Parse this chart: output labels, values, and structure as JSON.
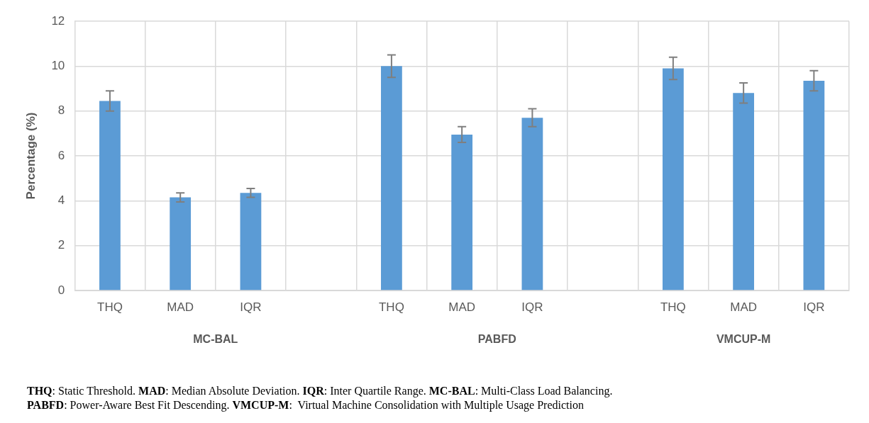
{
  "chart_data": {
    "type": "bar",
    "ylabel": "Percentage (%)",
    "categories": [
      "THQ",
      "MAD",
      "IQR",
      null,
      "THQ",
      "MAD",
      "IQR",
      null,
      "THQ",
      "MAD",
      "IQR"
    ],
    "values": [
      8.45,
      4.15,
      4.35,
      null,
      10.0,
      6.95,
      7.7,
      null,
      9.9,
      8.8,
      9.35
    ],
    "errors": [
      0.45,
      0.2,
      0.2,
      null,
      0.5,
      0.35,
      0.4,
      null,
      0.5,
      0.45,
      0.45
    ],
    "color": "#5b9bd5",
    "ylim": [
      0,
      12
    ],
    "yticks": [
      0,
      2,
      4,
      6,
      8,
      10,
      12
    ],
    "grid": true,
    "legend": false,
    "annotations": [
      "MC-BAL",
      "PABFD",
      "VMCUP-M",
      "THQ: Static Threshold. MAD: Median Absolute Deviation. IQR: Inter Quartile Range. MC-BAL: Multi-Class Load Balancing.",
      "PABFD: Power-Aware Best Fit Descending. VMCUP-M:  Virtual Machine Consolidation with Multiple Usage Prediction"
    ]
  }
}
